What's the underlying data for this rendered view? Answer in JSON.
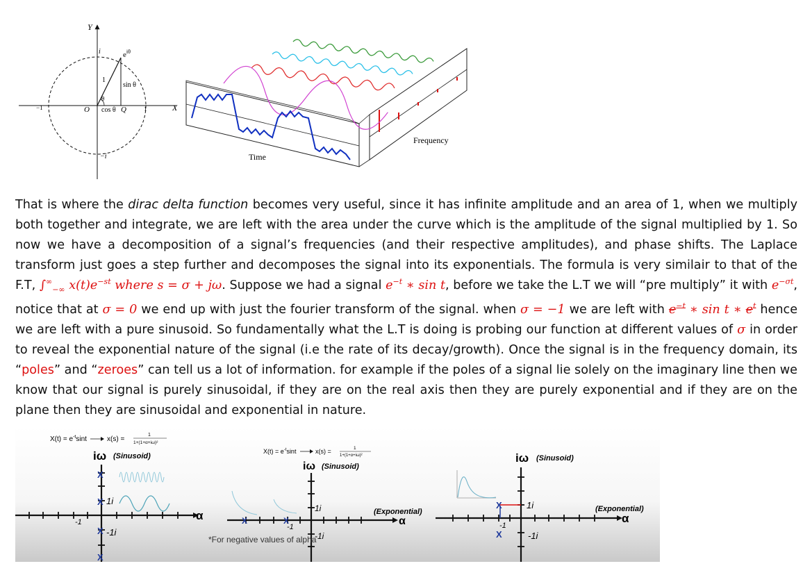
{
  "unit_circle": {
    "axis_y": "Y",
    "axis_x": "X",
    "i_top": "i",
    "i_bottom": "−i",
    "euler": "e",
    "euler_exp": "iθ",
    "one": "1",
    "sin": "sin θ",
    "cos": "cos θ",
    "theta": "θ",
    "origin": "O",
    "q": "Q",
    "minus_one": "−1",
    "plus_one": "1"
  },
  "fourier_3d": {
    "time_label": "Time",
    "frequency_label": "Frequency"
  },
  "paragraph": {
    "s1": "That is where the ",
    "dirac": "dirac delta function",
    "s2": " becomes very useful,  since it has infinite amplitude and an area of 1, when we multiply both together and integrate, we are left with the area under the curve which is the amplitude of the signal multiplied by 1. So now we have a decomposition of a signal’s frequencies (and their respective amplitudes), and phase shifts. The Laplace transform just goes a step further and decomposes the signal into its exponentials. The formula is very similair to that of the F.T, ",
    "integral": "∫",
    "int_upper": "∞",
    "int_lower": "−∞",
    "formula_x": " x(t)e",
    "formula_exp": "−st",
    "formula_where": " where s = σ + jω",
    "s3": ". Suppose we had a signal ",
    "sig": "e",
    "sig_exp": "−t",
    "sig_rest": " ∗ sin t",
    "s4": ", before we take the L.T we will “pre multiply” it with ",
    "pre": "e",
    "pre_exp": "−σt",
    "s5": ", notice that at ",
    "sigma0": "σ = 0",
    "s6": " we end up with just the fourier transform of the signal. when ",
    "sigma_m1": "σ = −1",
    "s7": " we are left with ",
    "c1": "e",
    "c1_exp": "−t",
    "c2": " ∗ sin t ∗ ",
    "c3": "e",
    "c3_exp": "t",
    "s8": " hence we are left with a pure sinusoid. So fundamentally what the L.T is doing is probing our function at different values of ",
    "sigma": "σ",
    "s9": " in order to reveal the exponential nature of the signal (i.e the rate of its decay/growth). Once the signal is in the frequency domain, its “",
    "poles": "poles",
    "s10": "” and “",
    "zeroes": "zeroes",
    "s11": "” can tell us a lot of information. for example if the poles of a signal lie solely on the imaginary line then we know that our signal is purely sinusoidal, if they are on the real axis then they are purely exponential and if they are on the plane then they are sinusoidal and exponential in nature."
  },
  "pole_plots": {
    "formula_left": "X(t) = e",
    "formula_exp": "-t",
    "formula_sint": "sint",
    "formula_xs": "x(s) =",
    "formula_num": "1",
    "formula_den": "1+(1+α+iω)²",
    "iw": "iω",
    "sinusoid": "(Sinusoid)",
    "exponential": "(Exponential)",
    "alpha": "α",
    "one_i": "1i",
    "minus_one_i": "-1i",
    "minus_one": "-1",
    "x_mark": "X",
    "note": "*For negative values of alpha"
  }
}
